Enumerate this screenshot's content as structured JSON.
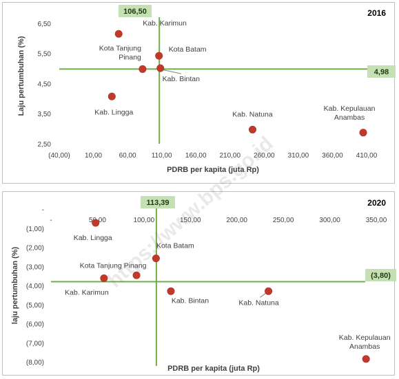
{
  "chart_data": [
    {
      "type": "scatter",
      "year_label": "2016",
      "xlabel": "PDRB per kapita (juta Rp)",
      "ylabel": "Laju pertumbuhan (%)",
      "xlim": [
        -40,
        410
      ],
      "ylim": [
        2.5,
        7.0
      ],
      "x_ticks": [
        "(40,00)",
        "10,00",
        "60,00",
        "110,00",
        "160,00",
        "210,00",
        "260,00",
        "310,00",
        "360,00",
        "410,00"
      ],
      "y_ticks": [
        "2,50",
        "3,50",
        "4,50",
        "5,50",
        "6,50"
      ],
      "y_tick_values": [
        2.5,
        3.5,
        4.5,
        5.5,
        6.5
      ],
      "vline": {
        "value": 106.5,
        "label": "106,50"
      },
      "hline": {
        "value": 4.98,
        "label": "4,98"
      },
      "points": [
        {
          "name": "Kab. Karimun",
          "x": 47,
          "y": 6.15
        },
        {
          "name": "Kota Batam",
          "x": 106,
          "y": 5.42
        },
        {
          "name": "Kota Tanjung Pinang",
          "x": 82,
          "y": 4.98
        },
        {
          "name": "Kab. Bintan",
          "x": 108,
          "y": 5.01
        },
        {
          "name": "Kab. Lingga",
          "x": 37,
          "y": 4.07
        },
        {
          "name": "Kab. Natuna",
          "x": 243,
          "y": 2.97
        },
        {
          "name": "Kab. Kepulauan Anambas",
          "x": 405,
          "y": 2.87
        }
      ]
    },
    {
      "type": "scatter",
      "year_label": "2020",
      "xlabel": "PDRB per kapita (juta Rp)",
      "ylabel": "laju pertumbuhan (%)",
      "xlim": [
        0,
        350
      ],
      "ylim": [
        -8.0,
        0.0
      ],
      "x_ticks": [
        "-",
        "50,00",
        "100,00",
        "150,00",
        "200,00",
        "250,00",
        "300,00",
        "350,00"
      ],
      "y_ticks": [
        "-",
        "(1,00)",
        "(2,00)",
        "(3,00)",
        "(4,00)",
        "(5,00)",
        "(6,00)",
        "(7,00)",
        "(8,00)"
      ],
      "y_tick_values": [
        0,
        -1,
        -2,
        -3,
        -4,
        -5,
        -6,
        -7,
        -8
      ],
      "vline": {
        "value": 113.39,
        "label": "113,39"
      },
      "hline": {
        "value": -3.8,
        "label": "(3,80)"
      },
      "points": [
        {
          "name": "Kab. Lingga",
          "x": 48,
          "y": -0.72
        },
        {
          "name": "Kota Batam",
          "x": 113,
          "y": -2.58
        },
        {
          "name": "Kota Tanjung Pinang",
          "x": 92,
          "y": -3.47
        },
        {
          "name": "Kab. Karimun",
          "x": 57,
          "y": -3.62
        },
        {
          "name": "Kab. Bintan",
          "x": 129,
          "y": -4.3
        },
        {
          "name": "Kab. Natuna",
          "x": 234,
          "y": -4.3
        },
        {
          "name": "Kab. Kepulauan Anambas",
          "x": 339,
          "y": -7.85
        }
      ]
    }
  ],
  "watermark": "https://www.bps.go.id",
  "colors": {
    "point": "#c0392b",
    "guide_line": "#70ad47",
    "callout_fill": "#c5e0b4",
    "leader": "#7f7f7f"
  }
}
